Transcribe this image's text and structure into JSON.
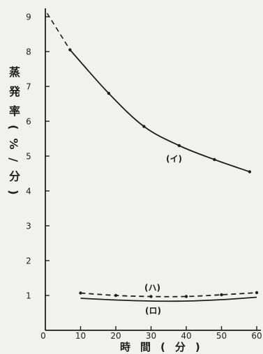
{
  "colors": {
    "background": "#f1f1ee",
    "ink": "#1e1e1e"
  },
  "chart_data": {
    "type": "line",
    "xlabel": "時間(分)",
    "ylabel": "蒸発率(%/分)",
    "xlim": [
      0,
      60
    ],
    "ylim": [
      0,
      9
    ],
    "x_ticks": [
      "0",
      "10",
      "20",
      "30",
      "40",
      "50",
      "60"
    ],
    "y_ticks": [
      "1",
      "2",
      "3",
      "4",
      "5",
      "6",
      "7",
      "8",
      "9"
    ],
    "grid": false,
    "series": [
      {
        "name": "(イ)",
        "dashed": false,
        "markers": true,
        "x": [
          7,
          18,
          28,
          38,
          48,
          58
        ],
        "y": [
          8.05,
          6.8,
          5.85,
          5.3,
          4.9,
          4.55
        ],
        "extrapolation": {
          "dashed": true,
          "x": [
            0.5,
            7
          ],
          "y": [
            9.1,
            8.05
          ]
        }
      },
      {
        "name": "(ハ)",
        "dashed": true,
        "markers": true,
        "x": [
          10,
          20,
          30,
          40,
          50,
          60
        ],
        "y": [
          1.07,
          1.0,
          0.97,
          0.97,
          1.02,
          1.08
        ]
      },
      {
        "name": "(ロ)",
        "dashed": false,
        "markers": false,
        "x": [
          10,
          20,
          30,
          40,
          50,
          60
        ],
        "y": [
          0.92,
          0.87,
          0.84,
          0.84,
          0.88,
          0.95
        ]
      }
    ]
  }
}
